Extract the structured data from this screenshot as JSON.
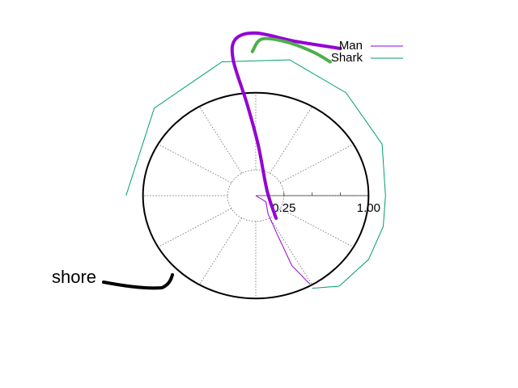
{
  "chart_data": {
    "type": "line",
    "coordinate_system": "polar",
    "title": "",
    "radial_axis": {
      "range": [
        0,
        1.0
      ],
      "tick_labels": [
        "0.25",
        "1.00"
      ],
      "tick_values": [
        0.25,
        0.5,
        0.75,
        1.0
      ]
    },
    "grid": {
      "angular_step_deg": 30,
      "radial_circles": [
        0.25,
        1.0
      ]
    },
    "shore": {
      "radius": 1.0
    },
    "legend": {
      "position": "top-right",
      "entries": [
        {
          "label": "Man",
          "color": "#9400d3"
        },
        {
          "label": "Shark",
          "color": "#009e73"
        }
      ]
    },
    "series": [
      {
        "name": "Man",
        "color": "#9400d3",
        "points": [
          [
            0.0,
            0.0
          ],
          [
            0.09,
            -0.06
          ],
          [
            0.11,
            -0.18
          ],
          [
            0.2,
            -0.4
          ],
          [
            0.32,
            -0.68
          ],
          [
            0.48,
            -0.86
          ]
        ]
      },
      {
        "name": "Shark",
        "color": "#009e73",
        "points": [
          [
            1.15,
            0.0
          ],
          [
            1.13,
            -0.3
          ],
          [
            1.0,
            -0.62
          ],
          [
            0.74,
            -0.88
          ],
          [
            0.5,
            -0.9
          ]
        ]
      },
      {
        "name": "Shark arc",
        "color": "#009e73",
        "points": [
          [
            1.15,
            0.0
          ],
          [
            1.12,
            0.5
          ],
          [
            0.8,
            1.0
          ],
          [
            0.3,
            1.32
          ],
          [
            -0.3,
            1.3
          ],
          [
            -0.9,
            0.85
          ],
          [
            -1.15,
            0.0
          ]
        ]
      }
    ],
    "highlight_curves": [
      {
        "name": "Man",
        "color": "#9400d3",
        "points": [
          [
            0.18,
            -0.22
          ],
          [
            0.1,
            0.05
          ],
          [
            0.02,
            0.5
          ],
          [
            -0.08,
            0.9
          ],
          [
            -0.2,
            1.32
          ],
          [
            -0.18,
            1.52
          ],
          [
            0.0,
            1.58
          ],
          [
            0.35,
            1.5
          ],
          [
            0.75,
            1.43
          ]
        ]
      },
      {
        "name": "Shark",
        "color": "#4daf4a",
        "points": [
          [
            -0.03,
            1.4
          ],
          [
            0.05,
            1.52
          ],
          [
            0.25,
            1.5
          ],
          [
            0.5,
            1.4
          ],
          [
            0.66,
            1.3
          ]
        ]
      }
    ],
    "annotations": [
      {
        "text": "shore"
      }
    ]
  }
}
